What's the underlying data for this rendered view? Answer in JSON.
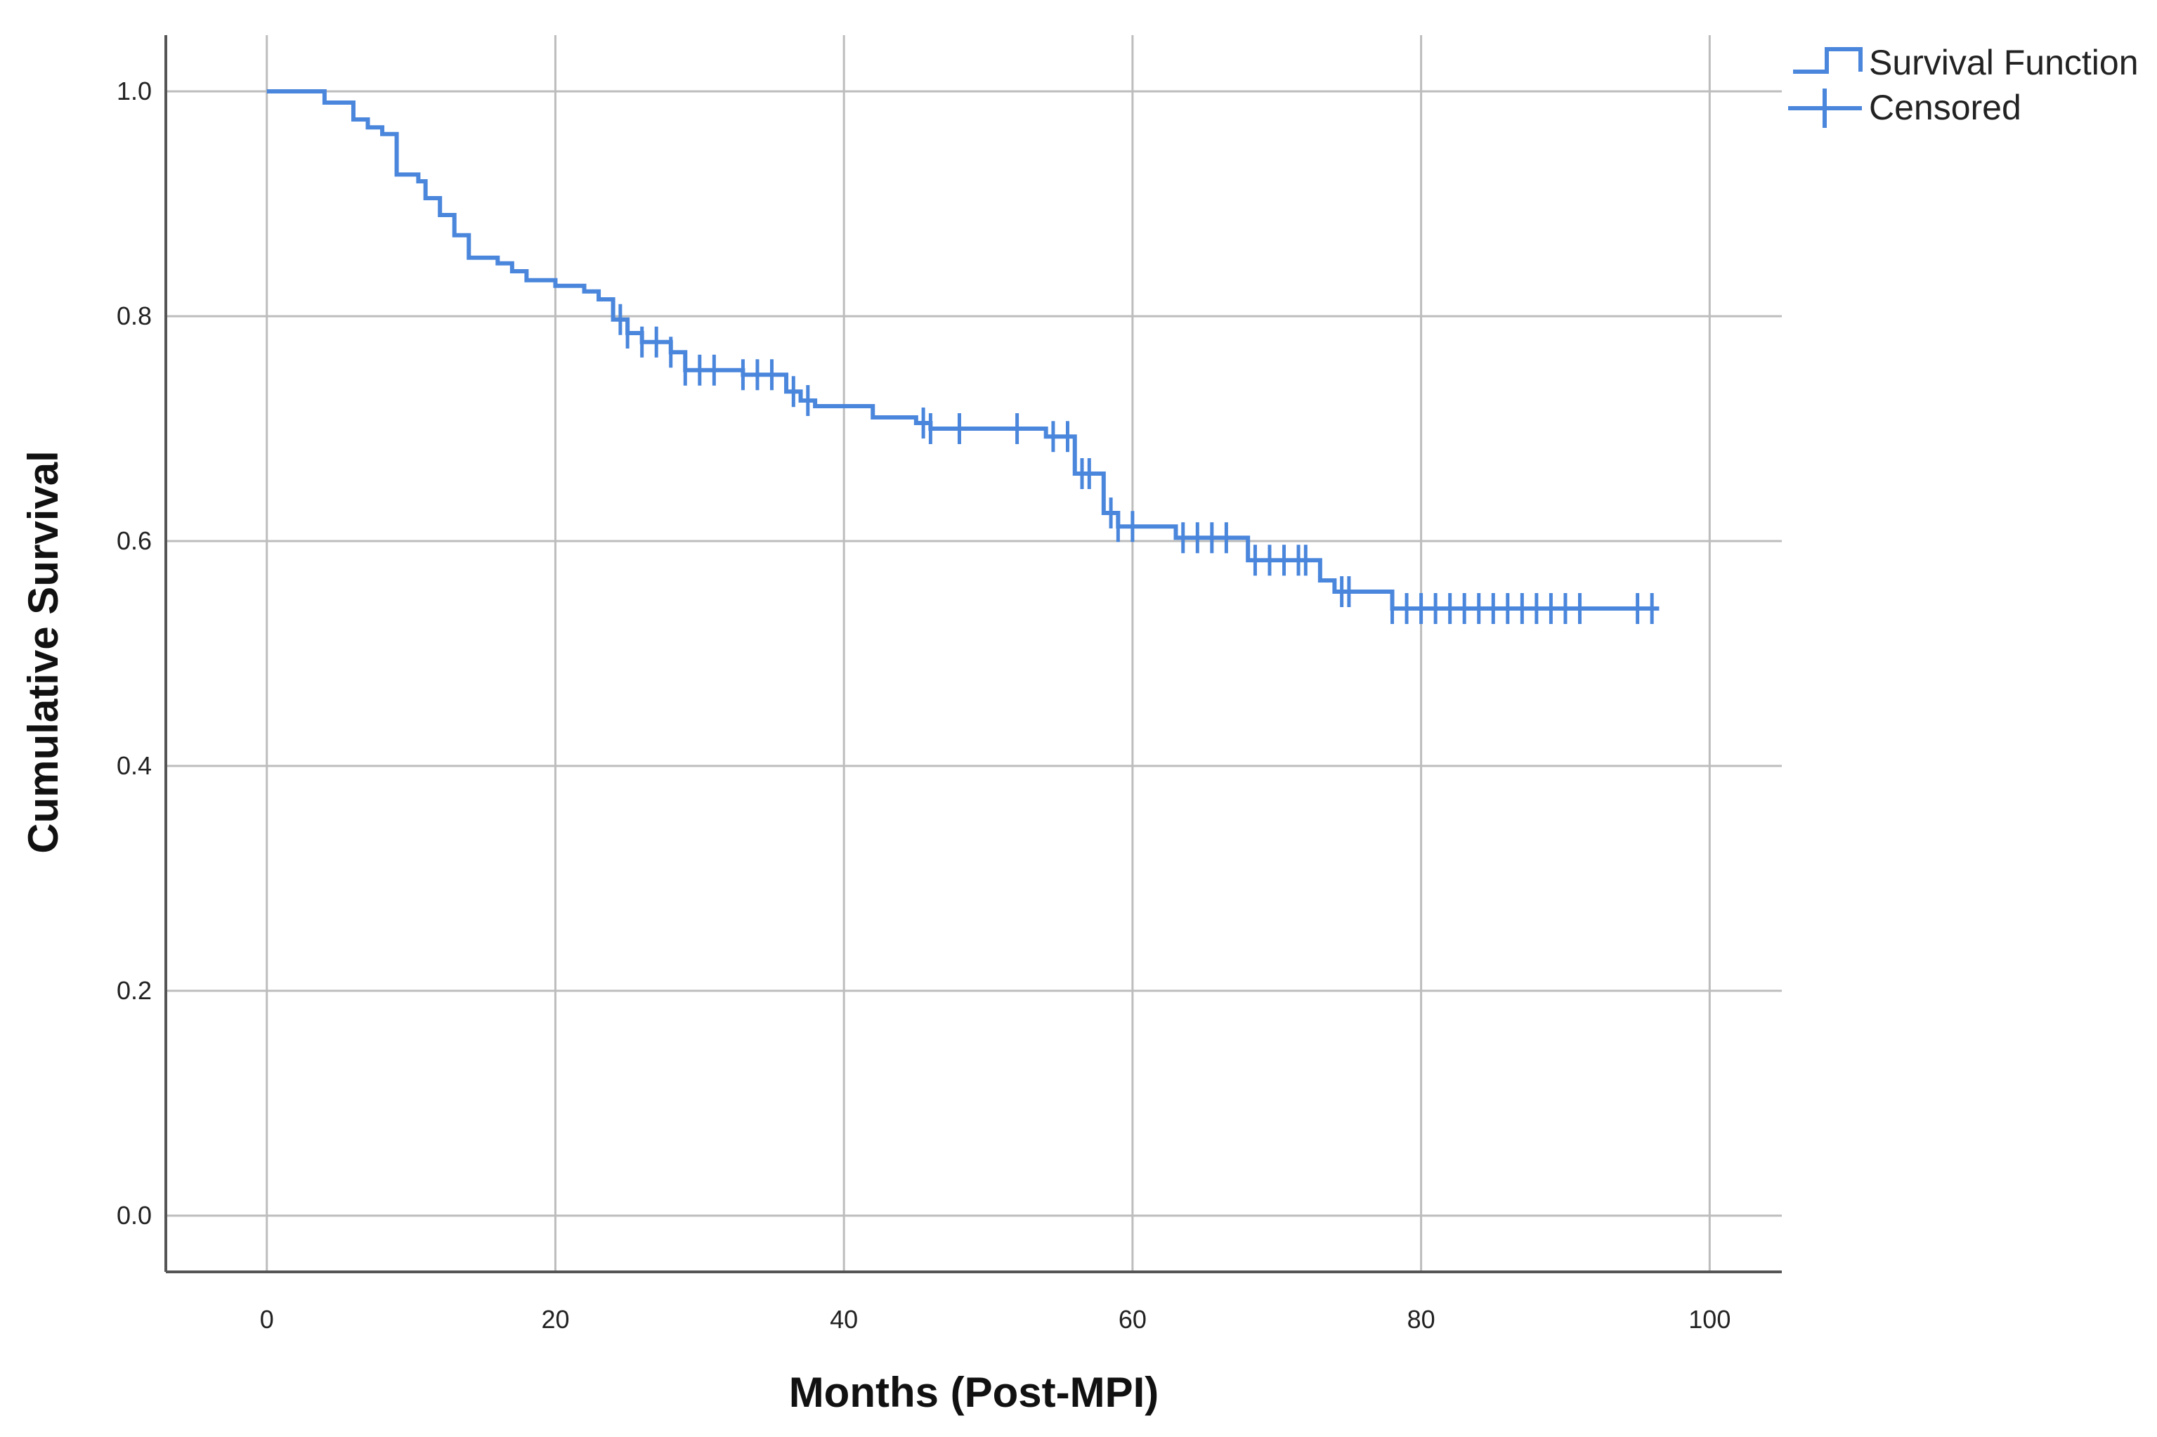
{
  "chart_data": {
    "type": "line",
    "subtype": "kaplan-meier-step",
    "xlabel": "Months (Post-MPI)",
    "ylabel": "Cumulative Survival",
    "xlim": [
      -7,
      105
    ],
    "ylim": [
      -0.05,
      1.05
    ],
    "xticks": [
      "0",
      "20",
      "40",
      "60",
      "80",
      "100"
    ],
    "yticks": [
      "0.0",
      "0.2",
      "0.4",
      "0.6",
      "0.8",
      "1.0"
    ],
    "grid": true,
    "legend_position": "top-right",
    "colors": {
      "series": "#4a86dc",
      "grid": "#bdbdbd",
      "axis": "#555555"
    },
    "series": [
      {
        "name": "Survival Function",
        "steps": [
          [
            0,
            1.0
          ],
          [
            4,
            0.99
          ],
          [
            6,
            0.975
          ],
          [
            7,
            0.968
          ],
          [
            8,
            0.962
          ],
          [
            9,
            0.926
          ],
          [
            10.5,
            0.92
          ],
          [
            11,
            0.905
          ],
          [
            12,
            0.89
          ],
          [
            13,
            0.872
          ],
          [
            14,
            0.852
          ],
          [
            16,
            0.847
          ],
          [
            17,
            0.84
          ],
          [
            18,
            0.832
          ],
          [
            20,
            0.827
          ],
          [
            22,
            0.822
          ],
          [
            23,
            0.815
          ],
          [
            24,
            0.797
          ],
          [
            25,
            0.785
          ],
          [
            26,
            0.777
          ],
          [
            28,
            0.768
          ],
          [
            29,
            0.752
          ],
          [
            33,
            0.748
          ],
          [
            36,
            0.733
          ],
          [
            37,
            0.725
          ],
          [
            38,
            0.72
          ],
          [
            42,
            0.71
          ],
          [
            45,
            0.705
          ],
          [
            46,
            0.7
          ],
          [
            54,
            0.693
          ],
          [
            56,
            0.66
          ],
          [
            58,
            0.625
          ],
          [
            59,
            0.613
          ],
          [
            63,
            0.603
          ],
          [
            68,
            0.583
          ],
          [
            73,
            0.565
          ],
          [
            74,
            0.555
          ],
          [
            78,
            0.54
          ]
        ],
        "end_x": 96.5
      },
      {
        "name": "Censored",
        "marks_x": [
          24.5,
          25,
          26,
          27,
          28,
          29,
          30,
          31,
          33,
          34,
          35,
          36.5,
          37.5,
          45.5,
          46,
          48,
          52,
          54.5,
          55.5,
          56.5,
          57,
          58.5,
          59,
          60,
          63.5,
          64.5,
          65.5,
          66.5,
          68.5,
          69.5,
          70.5,
          71.5,
          72,
          74.5,
          75,
          78,
          79,
          80,
          81,
          82,
          83,
          84,
          85,
          86,
          87,
          88,
          89,
          90,
          91,
          95,
          96
        ]
      }
    ]
  }
}
